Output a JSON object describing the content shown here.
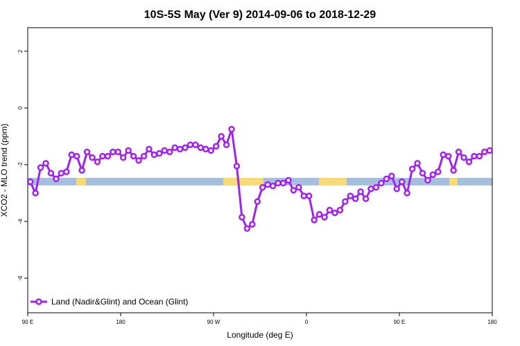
{
  "chart_data": {
    "type": "line",
    "title": "10S-5S May (Ver 9)   2014-09-06 to 2018-12-29",
    "x_label": "Longitude (deg E)",
    "y_label": "XCO2 - MLO trend (ppm)",
    "xlim": [
      90,
      540
    ],
    "ylim": [
      -7.22,
      2.83
    ],
    "xticks": [
      {
        "value": 90,
        "label": "90 E"
      },
      {
        "value": 180,
        "label": "180"
      },
      {
        "value": 270,
        "label": "90 W"
      },
      {
        "value": 360,
        "label": "0"
      },
      {
        "value": 450,
        "label": "90 E"
      },
      {
        "value": 540,
        "label": "180"
      }
    ],
    "yticks": [
      2,
      0,
      -2,
      -4,
      -6
    ],
    "legend": "bottom-left",
    "x": [
      92.5,
      97.5,
      102.5,
      107.5,
      112.5,
      117.5,
      122.5,
      127.5,
      132.5,
      137.5,
      142.5,
      147.5,
      152.5,
      157.5,
      162.5,
      167.5,
      172.5,
      177.5,
      182.5,
      187.5,
      192.5,
      197.5,
      202.5,
      207.5,
      212.5,
      217.5,
      222.5,
      227.5,
      232.5,
      237.5,
      242.5,
      247.5,
      252.5,
      257.5,
      262.5,
      267.5,
      272.5,
      277.5,
      282.5,
      287.5,
      292.5,
      297.5,
      302.5,
      307.5,
      312.5,
      317.5,
      322.5,
      327.5,
      332.5,
      337.5,
      342.5,
      347.5,
      352.5,
      357.5,
      362.5,
      367.5,
      372.5,
      377.5,
      382.5,
      387.5,
      392.5,
      397.5,
      402.5,
      407.5,
      412.5,
      417.5,
      422.5,
      427.5,
      432.5,
      437.5,
      442.5,
      447.5,
      452.5,
      457.5,
      462.5,
      467.5,
      472.5,
      477.5,
      482.5,
      487.5,
      492.5,
      497.5,
      502.5,
      507.5,
      512.5,
      517.5,
      522.5,
      527.5,
      532.5,
      537.5
    ],
    "series": [
      {
        "name": "Land (Nadir&Glint) and Ocean (Glint)",
        "color": "#a020f0",
        "values": [
          -2.6,
          -3.0,
          -2.1,
          -1.95,
          -2.3,
          -2.5,
          -2.3,
          -2.25,
          -1.65,
          -1.7,
          -2.2,
          -1.55,
          -1.75,
          -1.9,
          -1.7,
          -1.7,
          -1.55,
          -1.55,
          -1.75,
          -1.5,
          -1.7,
          -1.85,
          -1.7,
          -1.45,
          -1.65,
          -1.6,
          -1.5,
          -1.55,
          -1.4,
          -1.45,
          -1.4,
          -1.3,
          -1.3,
          -1.4,
          -1.45,
          -1.5,
          -1.35,
          -1.0,
          -1.3,
          -0.75,
          -2.05,
          -3.85,
          -4.25,
          -4.1,
          -3.3,
          -2.8,
          -2.7,
          -2.75,
          -2.65,
          -2.65,
          -2.55,
          -2.9,
          -2.8,
          -3.1,
          -3.1,
          -3.95,
          -3.75,
          -3.85,
          -3.6,
          -3.7,
          -3.6,
          -3.3,
          -3.1,
          -3.2,
          -2.95,
          -3.2,
          -2.85,
          -2.8,
          -2.65,
          -2.5,
          -2.4,
          -2.85,
          -2.6,
          -3.0,
          -2.15,
          -1.95,
          -2.3,
          -2.55,
          -2.35,
          -2.25,
          -1.65,
          -1.7,
          -2.2,
          -1.55,
          -1.75,
          -1.9,
          -1.7,
          -1.7,
          -1.55,
          -1.5
        ]
      }
    ]
  }
}
